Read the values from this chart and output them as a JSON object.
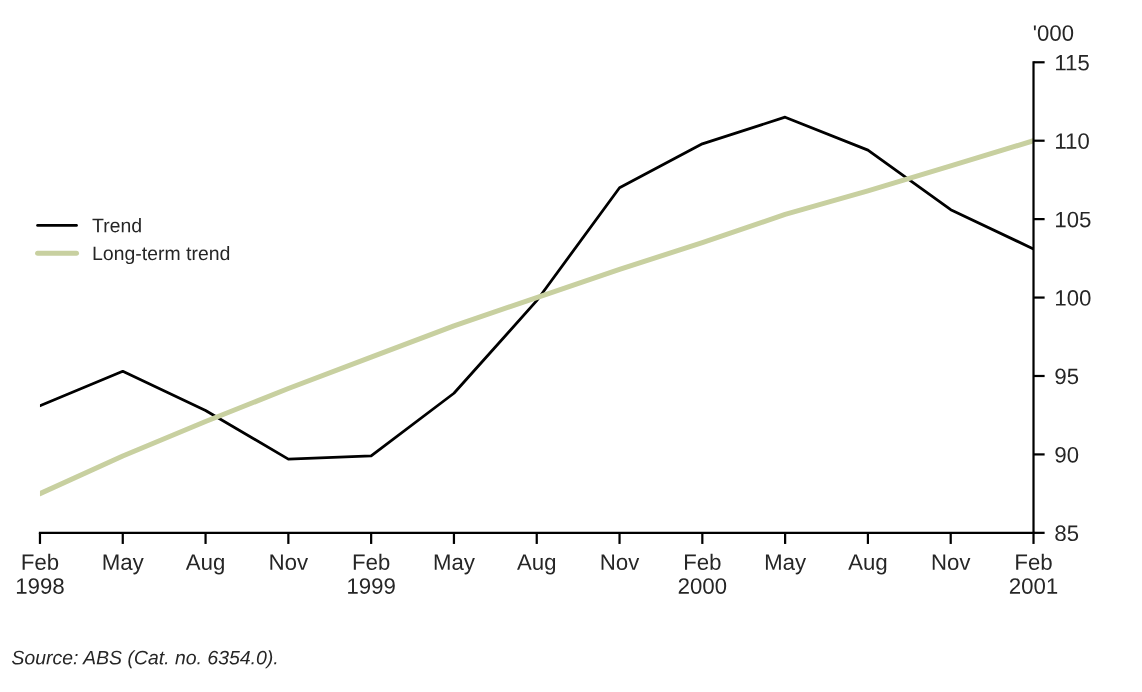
{
  "chart_data": {
    "type": "line",
    "ylabel": "'000",
    "categories": [
      "Feb\n1998",
      "May",
      "Aug",
      "Nov",
      "Feb\n1999",
      "May",
      "Aug",
      "Nov",
      "Feb\n2000",
      "May",
      "Aug",
      "Nov",
      "Feb\n2001"
    ],
    "series": [
      {
        "name": "Trend",
        "color": "#000000",
        "values": [
          93.1,
          95.3,
          92.8,
          89.7,
          89.9,
          93.9,
          99.8,
          107.0,
          109.8,
          111.5,
          109.4,
          105.6,
          103.1
        ]
      },
      {
        "name": "Long-term trend",
        "color": "#c8d0a0",
        "values": [
          87.5,
          89.9,
          92.1,
          94.2,
          96.2,
          98.2,
          100.0,
          101.8,
          103.5,
          105.3,
          106.8,
          108.4,
          110.0
        ]
      }
    ],
    "ylim": [
      85,
      115
    ],
    "yticks": [
      85,
      90,
      95,
      100,
      105,
      110,
      115
    ],
    "grid": false,
    "legend": "left",
    "marker": "none",
    "line_style": "solid",
    "annotations": [
      "Source: ABS (Cat. no. 6354.0)."
    ]
  }
}
